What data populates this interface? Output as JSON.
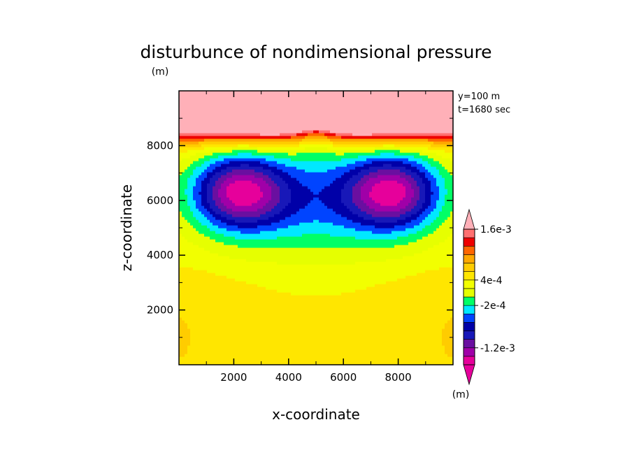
{
  "chart_data": {
    "type": "heatmap",
    "title": "disturbunce of nondimensional pressure",
    "unit_top": "(m)",
    "xlabel": "x-coordinate",
    "ylabel": "z-coordinate",
    "annotation_lines": [
      "y=100 m",
      "t=1680 sec"
    ],
    "xlim": [
      0,
      10000
    ],
    "ylim": [
      0,
      10000
    ],
    "xticks": [
      2000,
      4000,
      6000,
      8000
    ],
    "yticks": [
      2000,
      4000,
      6000,
      8000
    ],
    "x_tick_labels": [
      "2000",
      "4000",
      "6000",
      "8000"
    ],
    "y_tick_labels": [
      "2000",
      "4000",
      "6000",
      "8000"
    ],
    "colorbar": {
      "labels": [
        {
          "text": "1.6e-3",
          "value": 0.0016
        },
        {
          "text": "4e-4",
          "value": 0.0004
        },
        {
          "text": "-2e-4",
          "value": -0.0002
        },
        {
          "text": "-1.2e-3",
          "value": -0.0012
        }
      ],
      "unit": "(m)",
      "levels": [
        -0.0016,
        -0.0014,
        -0.0012,
        -0.001,
        -0.0008,
        -0.0006,
        -0.0004,
        -0.0002,
        0.0,
        0.0002,
        0.0004,
        0.0006,
        0.0008,
        0.001,
        0.0012,
        0.0014,
        0.0016
      ],
      "colors": [
        "#e6009b",
        "#a000a8",
        "#6a0fa0",
        "#1818b8",
        "#0000a8",
        "#0044ff",
        "#00e8ff",
        "#00ff66",
        "#e6ff00",
        "#f2ff00",
        "#ffe600",
        "#ffcc00",
        "#ffa800",
        "#ff6600",
        "#ee0000",
        "#ff7070",
        "#ffb0b8"
      ]
    },
    "colors": {
      "above_max": "#ffb0b8",
      "below_min": "#e6009b"
    }
  }
}
